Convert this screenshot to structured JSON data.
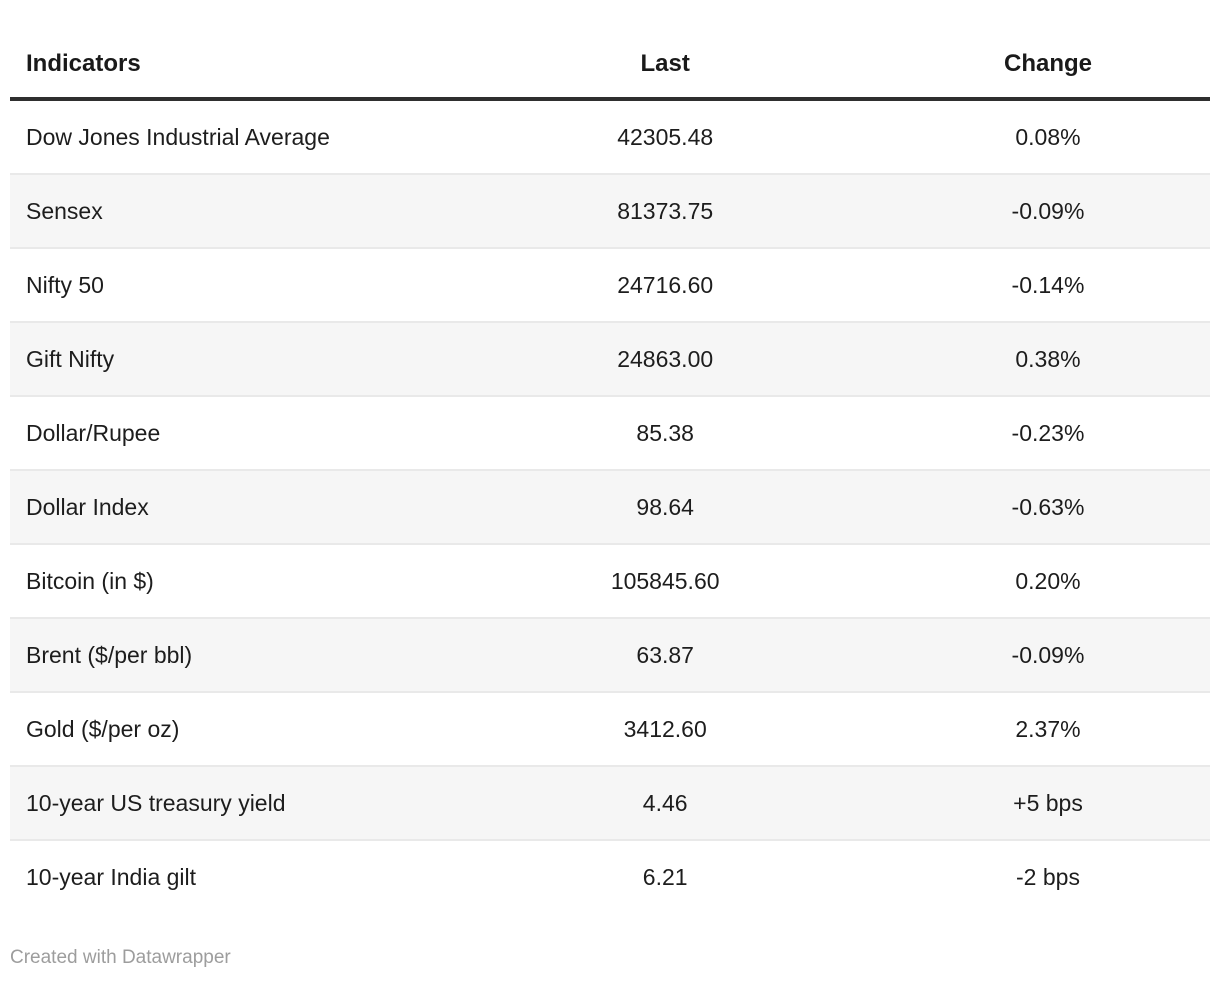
{
  "chart_data": {
    "type": "table",
    "columns": [
      "Indicators",
      "Last",
      "Change"
    ],
    "rows": [
      [
        "Dow Jones Industrial Average",
        "42305.48",
        "0.08%"
      ],
      [
        "Sensex",
        "81373.75",
        "-0.09%"
      ],
      [
        "Nifty 50",
        "24716.60",
        "-0.14%"
      ],
      [
        "Gift Nifty",
        "24863.00",
        "0.38%"
      ],
      [
        "Dollar/Rupee",
        "85.38",
        "-0.23%"
      ],
      [
        "Dollar Index",
        "98.64",
        "-0.63%"
      ],
      [
        "Bitcoin (in $)",
        "105845.60",
        "0.20%"
      ],
      [
        "Brent ($/per bbl)",
        "63.87",
        "-0.09%"
      ],
      [
        "Gold ($/per oz)",
        "3412.60",
        "2.37%"
      ],
      [
        "10-year US treasury yield",
        "4.46",
        "+5 bps"
      ],
      [
        "10-year India gilt",
        "6.21",
        "-2 bps"
      ]
    ],
    "layout": {
      "striped_rows": true,
      "stripe_on_rows": "even",
      "header_align": [
        "left",
        "center",
        "center"
      ],
      "cell_align": [
        "left",
        "center",
        "center"
      ],
      "grid": "horizontal-only"
    }
  },
  "footer": {
    "attribution": "Created with Datawrapper"
  },
  "colors": {
    "background": "#ffffff",
    "text": "#1d1d1d",
    "header_text": "#1a1a1a",
    "header_rule": "#2f2f2f",
    "row_stripe": "#f6f6f6",
    "row_border": "#e9e9e9",
    "attribution_text": "#9d9d9d"
  }
}
